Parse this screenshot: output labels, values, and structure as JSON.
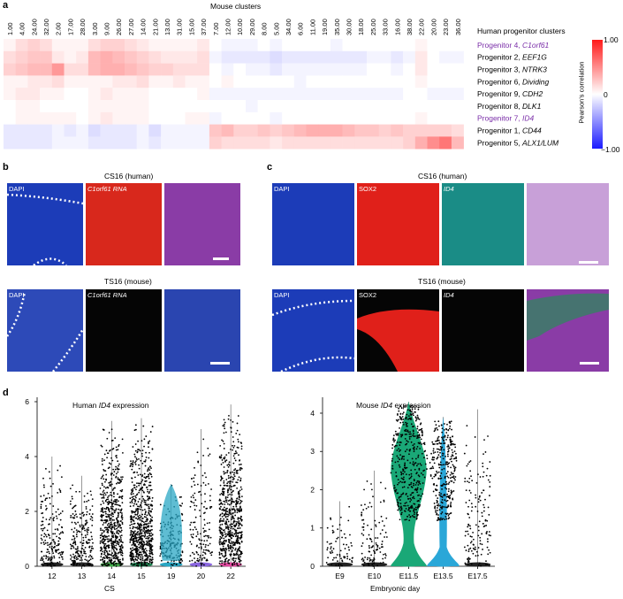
{
  "figure": {
    "panel_labels": {
      "a": "a",
      "b": "b",
      "c": "c",
      "d": "d"
    },
    "colors": {
      "low": "#1a1aff",
      "mid": "#ffffff",
      "high": "#ff1a1a",
      "purple": "#7a2ea8",
      "dapi": "#1c3cb8",
      "sox2": "#e0201a",
      "id4": "#1a8c86",
      "c1orf61": "#d8281c",
      "merge": "#b74fb8",
      "empty": "#050505"
    }
  },
  "panel_a": {
    "title": "Mouse clusters",
    "rows_header": "Human progenitor clusters",
    "colorbar": {
      "title": "Pearson's correlation",
      "max": "1.00",
      "mid": "0",
      "min": "−1.00"
    },
    "chart_data": {
      "type": "heatmap",
      "title": "Mouse clusters",
      "columns": [
        "1.00",
        "4.00",
        "24.00",
        "32.00",
        "2.00",
        "17.00",
        "28.00",
        "3.00",
        "9.00",
        "26.00",
        "27.00",
        "14.00",
        "21.00",
        "13.00",
        "31.00",
        "15.00",
        "37.00",
        "7.00",
        "12.00",
        "10.00",
        "29.00",
        "8.00",
        "5.00",
        "34.00",
        "6.00",
        "11.00",
        "19.00",
        "35.00",
        "30.00",
        "18.00",
        "25.00",
        "33.00",
        "16.00",
        "38.00",
        "22.00",
        "20.00",
        "23.00",
        "36.00"
      ],
      "rows": [
        {
          "name": "Progenitor 4, ",
          "gene": "C1orf61",
          "purple": true
        },
        {
          "name": "Progenitor 2, ",
          "gene": "EEF1G",
          "purple": false
        },
        {
          "name": "Progenitor 3, ",
          "gene": "NTRK3",
          "purple": false
        },
        {
          "name": "Progenitor 6, ",
          "gene": "Dividing",
          "purple": false
        },
        {
          "name": "Progenitor 9, ",
          "gene": "CDH2",
          "purple": false
        },
        {
          "name": "Progenitor 8, ",
          "gene": "DLK1",
          "purple": false
        },
        {
          "name": "Progenitor 7, ",
          "gene": "ID4",
          "purple": true
        },
        {
          "name": "Progenitor 1, ",
          "gene": "CD44",
          "purple": false
        },
        {
          "name": "Progenitor 5, ",
          "gene": "ALX1/LUM",
          "purple": false
        }
      ],
      "values": [
        [
          0.05,
          0.15,
          0.2,
          0.15,
          0.05,
          0.05,
          0.05,
          0.15,
          0.2,
          0.2,
          0.15,
          0.1,
          0.05,
          0.05,
          0.05,
          0.05,
          0.1,
          0,
          -0.05,
          -0.05,
          -0.05,
          0,
          -0.05,
          0,
          0,
          0,
          0,
          -0.05,
          0,
          0,
          0,
          0,
          0,
          0,
          0.05,
          0,
          0,
          0
        ],
        [
          0.15,
          0.2,
          0.25,
          0.25,
          0.1,
          0.05,
          0.1,
          0.3,
          0.35,
          0.3,
          0.25,
          0.2,
          0.15,
          0.1,
          0.1,
          0.1,
          0.15,
          -0.05,
          -0.1,
          -0.1,
          -0.1,
          -0.1,
          -0.15,
          -0.1,
          -0.1,
          -0.1,
          -0.1,
          -0.1,
          -0.1,
          -0.1,
          -0.05,
          -0.05,
          -0.1,
          -0.05,
          0.1,
          0,
          -0.05,
          -0.05
        ],
        [
          0.2,
          0.25,
          0.3,
          0.3,
          0.45,
          0.15,
          0.15,
          0.3,
          0.35,
          0.35,
          0.3,
          0.25,
          0.2,
          0.2,
          0.15,
          0.15,
          0.15,
          0,
          -0.05,
          0,
          -0.05,
          -0.05,
          -0.1,
          -0.05,
          -0.05,
          -0.05,
          -0.05,
          -0.05,
          -0.05,
          -0.05,
          0,
          0,
          -0.05,
          0,
          0.1,
          0,
          0,
          0
        ],
        [
          0.05,
          0.05,
          0.1,
          0.1,
          0.15,
          0.05,
          0.05,
          0.05,
          0.05,
          0.1,
          0.1,
          0.15,
          0.05,
          0.05,
          0.1,
          0.05,
          0.05,
          0,
          0.05,
          0,
          0,
          0,
          0,
          0,
          -0.05,
          0,
          0,
          0,
          0,
          0,
          0,
          0,
          0,
          0,
          0.05,
          0,
          0,
          0
        ],
        [
          0.05,
          0.1,
          0.1,
          0.05,
          0.05,
          0,
          0,
          0.05,
          0.1,
          0.05,
          0.05,
          0.05,
          0,
          0,
          0,
          0,
          0.05,
          -0.05,
          -0.05,
          -0.05,
          -0.05,
          -0.05,
          -0.05,
          -0.05,
          -0.05,
          -0.05,
          -0.05,
          -0.05,
          -0.05,
          -0.05,
          -0.05,
          -0.05,
          -0.05,
          0,
          0,
          -0.05,
          -0.05,
          -0.05
        ],
        [
          0,
          0.05,
          0.05,
          0,
          0,
          0,
          0,
          0.05,
          0.05,
          0.05,
          0.05,
          0.05,
          0,
          0,
          0,
          0,
          0,
          0,
          0,
          0,
          -0.05,
          0,
          0,
          0,
          0,
          0,
          0,
          0,
          0,
          0,
          0,
          0,
          0,
          0,
          0,
          0,
          0,
          0
        ],
        [
          0,
          0.05,
          0.05,
          0.05,
          0.05,
          0.05,
          0,
          0.05,
          0.1,
          0.05,
          0.05,
          0.05,
          0,
          0,
          0,
          0.05,
          0.05,
          -0.05,
          0,
          0,
          0,
          0,
          -0.05,
          0,
          0,
          0,
          0,
          0,
          0,
          0,
          0,
          0,
          0,
          0,
          0.05,
          0,
          0,
          0
        ],
        [
          -0.1,
          -0.1,
          -0.1,
          -0.1,
          -0.05,
          -0.1,
          -0.05,
          -0.15,
          -0.1,
          -0.1,
          -0.1,
          -0.05,
          -0.15,
          -0.05,
          -0.05,
          -0.05,
          -0.05,
          0.25,
          0.3,
          0.2,
          0.2,
          0.25,
          0.2,
          0.25,
          0.3,
          0.35,
          0.35,
          0.35,
          0.3,
          0.25,
          0.25,
          0.2,
          0.25,
          0.2,
          0.2,
          0.2,
          0.2,
          0.15
        ],
        [
          -0.1,
          -0.1,
          -0.1,
          -0.1,
          -0.05,
          -0.05,
          -0.05,
          -0.1,
          -0.1,
          -0.1,
          -0.1,
          -0.05,
          -0.1,
          -0.05,
          -0.05,
          -0.05,
          -0.05,
          0.2,
          0.15,
          0.15,
          0.15,
          0.15,
          0.1,
          0.15,
          0.15,
          0.15,
          0.15,
          0.15,
          0.15,
          0.15,
          0.15,
          0.15,
          0.15,
          0.2,
          0.35,
          0.5,
          0.6,
          0.3
        ]
      ]
    }
  },
  "panel_b": {
    "row1_title": "CS16 (human)",
    "row2_title": "TS16 (mouse)",
    "dapi": "DAPI",
    "rna": "C1orf61 RNA"
  },
  "panel_c": {
    "row1_title": "CS16 (human)",
    "row2_title": "TS16 (mouse)",
    "dapi": "DAPI",
    "sox2": "SOX2",
    "id4": "ID4"
  },
  "panel_d": {
    "chart_data": [
      {
        "type": "violin",
        "title_prefix": "Human ",
        "title_gene": "ID4",
        "title_suffix": " expression",
        "xlabel": "CS",
        "ylabel": "",
        "ylim": [
          0,
          6
        ],
        "yticks": [
          "0",
          "2",
          "4",
          "6"
        ],
        "categories": [
          "12",
          "13",
          "14",
          "15",
          "19",
          "20",
          "22"
        ],
        "max": [
          4.0,
          3.3,
          5.3,
          5.4,
          3.0,
          5.0,
          5.9
        ],
        "density": [
          0.45,
          0.55,
          0.85,
          1.0,
          0.55,
          0.45,
          0.95
        ],
        "colors": [
          "#222222",
          "#2a2a2a",
          "#41b04a",
          "#1e8a55",
          "#2aa7c4",
          "#8a66e0",
          "#e0489e"
        ]
      },
      {
        "type": "violin",
        "title_prefix": "Mouse ",
        "title_gene": "ID4",
        "title_suffix": " expression",
        "xlabel": "Embryonic day",
        "ylim": [
          0,
          4.3
        ],
        "yticks": [
          "0",
          "1",
          "2",
          "3",
          "4"
        ],
        "categories": [
          "E9",
          "E10",
          "E11.5",
          "E13.5",
          "E17.5"
        ],
        "max": [
          1.7,
          2.5,
          4.3,
          3.9,
          4.1
        ],
        "colors": [
          "#222222",
          "#222222",
          "#1aa877",
          "#2aa7d8",
          "#222222"
        ]
      }
    ]
  }
}
